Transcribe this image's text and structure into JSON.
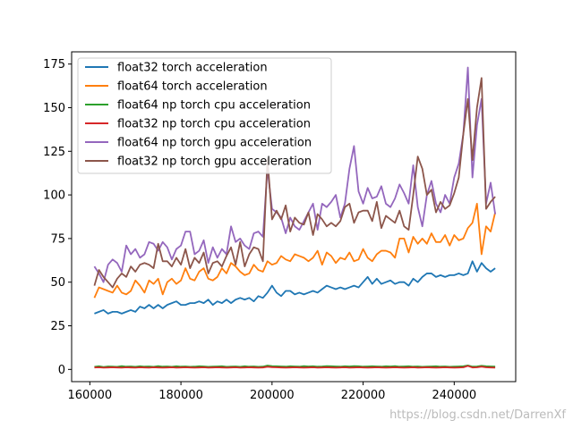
{
  "chart_data": {
    "type": "line",
    "title": "",
    "xlabel": "",
    "ylabel": "",
    "xlim": [
      156000,
      253500
    ],
    "ylim": [
      -7,
      182
    ],
    "xticks": [
      160000,
      180000,
      200000,
      220000,
      240000
    ],
    "yticks": [
      0,
      25,
      50,
      75,
      100,
      125,
      150,
      175
    ],
    "grid": false,
    "legend_position": "upper-left",
    "x": [
      161000,
      162000,
      163000,
      164000,
      165000,
      166000,
      167000,
      168000,
      169000,
      170000,
      171000,
      172000,
      173000,
      174000,
      175000,
      176000,
      177000,
      178000,
      179000,
      180000,
      181000,
      182000,
      183000,
      184000,
      185000,
      186000,
      187000,
      188000,
      189000,
      190000,
      191000,
      192000,
      193000,
      194000,
      195000,
      196000,
      197000,
      198000,
      199000,
      200000,
      201000,
      202000,
      203000,
      204000,
      205000,
      206000,
      207000,
      208000,
      209000,
      210000,
      211000,
      212000,
      213000,
      214000,
      215000,
      216000,
      217000,
      218000,
      219000,
      220000,
      221000,
      222000,
      223000,
      224000,
      225000,
      226000,
      227000,
      228000,
      229000,
      230000,
      231000,
      232000,
      233000,
      234000,
      235000,
      236000,
      237000,
      238000,
      239000,
      240000,
      241000,
      242000,
      243000,
      244000,
      245000,
      246000,
      247000,
      248000,
      249000
    ],
    "series": [
      {
        "name": "float32 torch acceleration",
        "color": "#1f77b4",
        "values": [
          32,
          33,
          34,
          32,
          33,
          33,
          32,
          33,
          34,
          33,
          36,
          35,
          37,
          35,
          37,
          35,
          37,
          38,
          39,
          37,
          37,
          38,
          38,
          39,
          38,
          40,
          37,
          39,
          38,
          40,
          38,
          40,
          41,
          40,
          41,
          39,
          42,
          41,
          44,
          48,
          44,
          42,
          45,
          45,
          43,
          44,
          43,
          44,
          45,
          44,
          46,
          48,
          47,
          46,
          47,
          46,
          47,
          48,
          47,
          50,
          53,
          49,
          52,
          49,
          50,
          51,
          49,
          50,
          50,
          48,
          52,
          50,
          53,
          55,
          55,
          53,
          54,
          53,
          54,
          54,
          55,
          54,
          55,
          62,
          56,
          61,
          58,
          56,
          58
        ]
      },
      {
        "name": "float64 torch acceleration",
        "color": "#ff7f0e",
        "values": [
          41,
          47,
          46,
          45,
          44,
          48,
          44,
          43,
          45,
          51,
          48,
          44,
          51,
          49,
          52,
          43,
          50,
          52,
          49,
          51,
          58,
          52,
          51,
          56,
          58,
          52,
          51,
          53,
          58,
          55,
          61,
          59,
          56,
          54,
          55,
          60,
          57,
          56,
          62,
          60,
          61,
          65,
          63,
          62,
          66,
          65,
          64,
          62,
          64,
          68,
          60,
          67,
          65,
          61,
          64,
          63,
          67,
          62,
          63,
          69,
          64,
          62,
          66,
          68,
          68,
          67,
          64,
          75,
          75,
          67,
          76,
          72,
          75,
          72,
          78,
          73,
          73,
          77,
          71,
          77,
          74,
          75,
          81,
          84,
          95,
          66,
          82,
          79,
          90
        ]
      },
      {
        "name": "float64 np torch cpu acceleration",
        "color": "#2ca02c",
        "values": [
          1.5,
          1.8,
          1.4,
          1.7,
          1.6,
          1.5,
          1.9,
          1.6,
          1.7,
          1.5,
          1.8,
          1.6,
          1.7,
          1.5,
          1.9,
          1.6,
          1.7,
          1.5,
          1.8,
          1.6,
          1.7,
          1.5,
          1.6,
          1.8,
          1.7,
          1.5,
          1.6,
          1.7,
          1.8,
          1.5,
          1.6,
          1.7,
          1.5,
          1.8,
          1.6,
          1.7,
          1.5,
          1.6,
          2.2,
          1.9,
          1.8,
          1.7,
          1.6,
          1.8,
          1.7,
          1.6,
          1.9,
          1.7,
          1.8,
          1.6,
          1.7,
          1.9,
          1.8,
          1.7,
          1.6,
          1.8,
          1.7,
          1.9,
          1.8,
          1.6,
          1.7,
          1.8,
          1.7,
          1.6,
          1.8,
          1.7,
          1.9,
          1.6,
          1.7,
          1.8,
          1.6,
          1.7,
          1.5,
          1.6,
          1.7,
          1.8,
          1.6,
          1.7,
          1.5,
          1.6,
          1.7,
          1.8,
          2.3,
          1.6,
          1.7,
          2.1,
          1.8,
          1.7,
          1.6
        ]
      },
      {
        "name": "float32 np torch cpu acceleration",
        "color": "#d62728",
        "values": [
          1.1,
          1.2,
          1.0,
          1.1,
          1.2,
          1.1,
          1.0,
          1.2,
          1.1,
          1.0,
          1.2,
          1.1,
          1.0,
          1.2,
          1.1,
          1.0,
          1.1,
          1.2,
          1.0,
          1.1,
          1.2,
          1.1,
          1.0,
          1.1,
          1.2,
          1.0,
          1.1,
          1.2,
          1.1,
          1.0,
          1.1,
          1.2,
          1.0,
          1.1,
          1.2,
          1.1,
          1.0,
          1.1,
          1.5,
          1.3,
          1.2,
          1.1,
          1.0,
          1.1,
          1.2,
          1.1,
          1.0,
          1.1,
          1.2,
          1.0,
          1.1,
          1.2,
          1.1,
          1.0,
          1.1,
          1.2,
          1.0,
          1.1,
          1.2,
          1.1,
          1.0,
          1.1,
          1.2,
          1.1,
          1.0,
          1.1,
          1.2,
          1.1,
          1.0,
          1.1,
          1.2,
          1.0,
          1.1,
          1.2,
          1.1,
          1.0,
          1.1,
          1.2,
          1.1,
          1.0,
          1.1,
          1.2,
          2.0,
          1.1,
          1.2,
          1.6,
          1.2,
          1.1,
          1.0
        ]
      },
      {
        "name": "float64 np torch gpu acceleration",
        "color": "#9467bd",
        "values": [
          59,
          55,
          50,
          60,
          63,
          61,
          56,
          71,
          66,
          69,
          64,
          66,
          73,
          72,
          68,
          73,
          70,
          63,
          69,
          71,
          79,
          79,
          66,
          68,
          74,
          61,
          70,
          64,
          69,
          66,
          82,
          73,
          75,
          71,
          69,
          78,
          79,
          76,
          115,
          92,
          90,
          87,
          78,
          87,
          82,
          80,
          85,
          90,
          95,
          80,
          95,
          93,
          96,
          100,
          87,
          95,
          115,
          128,
          102,
          95,
          104,
          98,
          99,
          105,
          95,
          93,
          98,
          106,
          101,
          95,
          117,
          93,
          82,
          100,
          108,
          95,
          90,
          100,
          95,
          110,
          118,
          135,
          173,
          110,
          140,
          155,
          95,
          107,
          89
        ]
      },
      {
        "name": "float32 np torch gpu acceleration",
        "color": "#8c564b",
        "values": [
          48,
          57,
          53,
          50,
          47,
          52,
          55,
          53,
          59,
          56,
          60,
          61,
          60,
          58,
          72,
          62,
          62,
          59,
          64,
          60,
          69,
          58,
          64,
          61,
          67,
          55,
          61,
          62,
          59,
          65,
          70,
          60,
          73,
          59,
          66,
          70,
          69,
          62,
          121,
          86,
          91,
          86,
          94,
          79,
          87,
          84,
          83,
          90,
          77,
          89,
          86,
          82,
          84,
          82,
          85,
          93,
          95,
          84,
          90,
          91,
          91,
          85,
          96,
          81,
          88,
          86,
          84,
          91,
          82,
          80,
          100,
          122,
          115,
          100,
          103,
          90,
          96,
          92,
          94,
          101,
          110,
          135,
          155,
          120,
          150,
          167,
          92,
          96,
          99
        ]
      }
    ],
    "watermark": "https://blog.csdn.net/DarrenXf"
  }
}
